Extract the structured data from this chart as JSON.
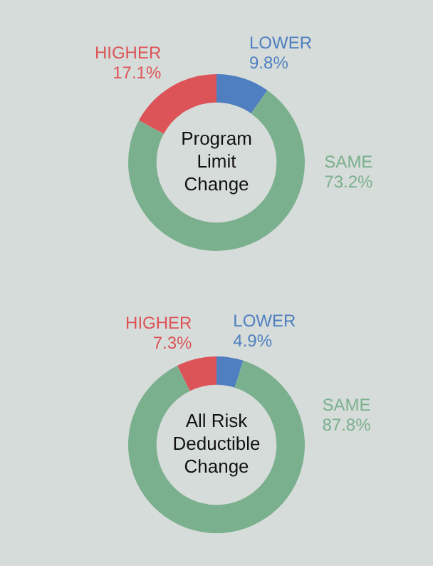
{
  "chart_data": [
    {
      "type": "donut",
      "title": "Program Limit Change",
      "categories": [
        "LOWER",
        "SAME",
        "HIGHER"
      ],
      "values": [
        9.8,
        73.2,
        17.1
      ],
      "value_labels": [
        "9.8%",
        "73.2%",
        "17.1%"
      ],
      "colors": [
        "#4f7fc0",
        "#7bb08f",
        "#dc5458"
      ],
      "legend": false
    },
    {
      "type": "donut",
      "title": "All Risk Deductible Change",
      "categories": [
        "LOWER",
        "SAME",
        "HIGHER"
      ],
      "values": [
        4.9,
        87.8,
        7.3
      ],
      "value_labels": [
        "4.9%",
        "87.8%",
        "7.3%"
      ],
      "colors": [
        "#4f7fc0",
        "#7bb08f",
        "#dc5458"
      ],
      "legend": false
    }
  ]
}
